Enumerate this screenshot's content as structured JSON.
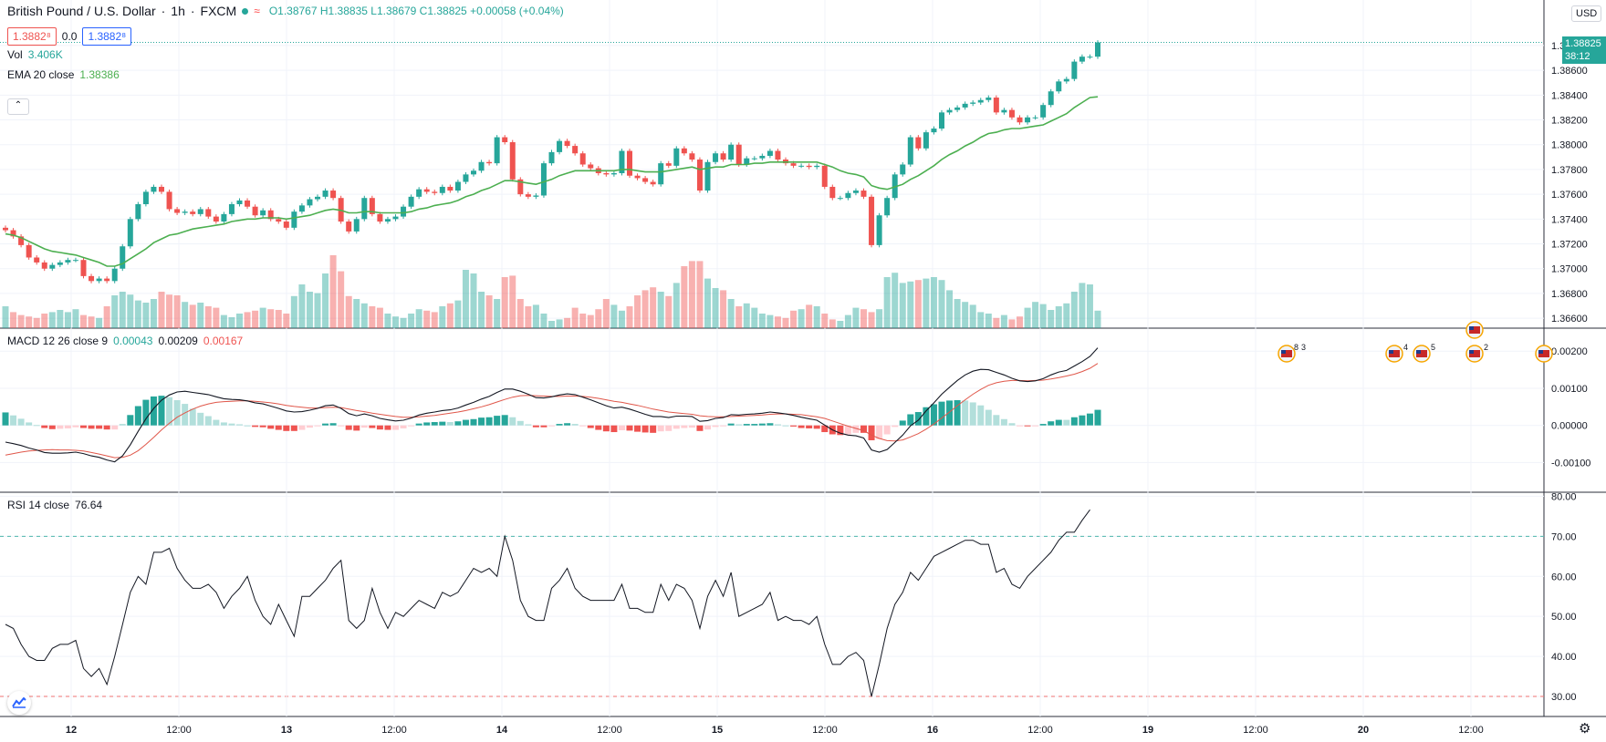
{
  "header": {
    "symbol": "British Pound / U.S. Dollar",
    "interval": "1h",
    "exchange": "FXCM",
    "open": "O1.38767",
    "high": "H1.38835",
    "low": "L1.38679",
    "close": "C1.38825",
    "change": "+0.00058 (+0.04%)"
  },
  "quote": {
    "sell": "1.3882⁸",
    "spread": "0.0",
    "buy": "1.3882⁸"
  },
  "indicators": {
    "vol_label": "Vol",
    "vol_value": "3.406K",
    "ema_label": "EMA 20 close",
    "ema_value": "1.38386",
    "macd_label": "MACD 12 26 close 9",
    "macd_hist": "0.00043",
    "macd_line": "0.00209",
    "macd_signal": "0.00167",
    "rsi_label": "RSI 14 close",
    "rsi_value": "76.64"
  },
  "currency": "USD",
  "last_price": {
    "price": "1.38825",
    "countdown": "38:12"
  },
  "colors": {
    "up": "#26a69a",
    "down": "#ef5350",
    "ema": "#4caf50",
    "macd": "#131722",
    "signal": "#e0574a",
    "rsi": "#131722",
    "grid": "#f0f3fa"
  },
  "chart_data": [
    {
      "type": "candlestick",
      "title": "British Pound / U.S. Dollar",
      "price_ticks": [
        "1.36600",
        "1.36800",
        "1.37000",
        "1.37200",
        "1.37400",
        "1.37600",
        "1.37800",
        "1.38000",
        "1.38200",
        "1.38400",
        "1.38600",
        "1.38800"
      ],
      "x_tick_labels": [
        "12",
        "12:00",
        "13",
        "12:00",
        "14",
        "12:00",
        "15",
        "12:00",
        "16",
        "12:00",
        "19",
        "12:00",
        "20",
        "12:00"
      ],
      "ylim": [
        1.3652,
        1.3902
      ],
      "close": [
        1.3731,
        1.3726,
        1.3719,
        1.3709,
        1.3705,
        1.37,
        1.3703,
        1.3705,
        1.3707,
        1.3707,
        1.3694,
        1.369,
        1.3692,
        1.369,
        1.37,
        1.3718,
        1.374,
        1.3752,
        1.3762,
        1.3766,
        1.3762,
        1.3748,
        1.3745,
        1.3746,
        1.3744,
        1.3748,
        1.3742,
        1.3738,
        1.3744,
        1.3752,
        1.3755,
        1.375,
        1.3743,
        1.3747,
        1.374,
        1.3738,
        1.3733,
        1.3746,
        1.3751,
        1.3756,
        1.3758,
        1.3763,
        1.3757,
        1.3738,
        1.373,
        1.374,
        1.3757,
        1.3744,
        1.3738,
        1.374,
        1.3742,
        1.375,
        1.3758,
        1.3764,
        1.3762,
        1.3761,
        1.3766,
        1.3763,
        1.377,
        1.3776,
        1.3779,
        1.3786,
        1.3785,
        1.3806,
        1.3802,
        1.3772,
        1.376,
        1.3758,
        1.3759,
        1.3785,
        1.3794,
        1.3803,
        1.3799,
        1.3793,
        1.3784,
        1.3781,
        1.3777,
        1.3776,
        1.3777,
        1.3795,
        1.3775,
        1.3773,
        1.377,
        1.3768,
        1.3785,
        1.3783,
        1.3797,
        1.3793,
        1.3788,
        1.3763,
        1.3786,
        1.3793,
        1.3788,
        1.38,
        1.3784,
        1.3789,
        1.3789,
        1.3791,
        1.3795,
        1.3788,
        1.3785,
        1.3783,
        1.3783,
        1.3782,
        1.3783,
        1.3766,
        1.3757,
        1.3757,
        1.3761,
        1.3763,
        1.3758,
        1.3719,
        1.3743,
        1.3757,
        1.3776,
        1.3784,
        1.3806,
        1.3797,
        1.381,
        1.3813,
        1.3826,
        1.3828,
        1.383,
        1.3833,
        1.3834,
        1.3836,
        1.3838,
        1.3826,
        1.3828,
        1.3822,
        1.3818,
        1.3822,
        1.3822,
        1.3832,
        1.3843,
        1.3851,
        1.3853,
        1.3867,
        1.3871,
        1.3871,
        1.38825
      ],
      "ema20": [
        1.3728,
        1.3727,
        1.3725,
        1.3722,
        1.3719,
        1.3716,
        1.3714,
        1.3713,
        1.3712,
        1.3711,
        1.3709,
        1.3707,
        1.3705,
        1.3702,
        1.3702,
        1.3704,
        1.3708,
        1.3712,
        1.3716,
        1.3721,
        1.3724,
        1.3727,
        1.3728,
        1.373,
        1.3732,
        1.3733,
        1.3734,
        1.3735,
        1.3736,
        1.3738,
        1.3739,
        1.374,
        1.374,
        1.3741,
        1.3741,
        1.3741,
        1.374,
        1.3741,
        1.3742,
        1.3743,
        1.3745,
        1.3747,
        1.3748,
        1.3747,
        1.3745,
        1.3745,
        1.3746,
        1.3746,
        1.3745,
        1.3745,
        1.3745,
        1.3745,
        1.3746,
        1.3748,
        1.3749,
        1.3751,
        1.3752,
        1.3753,
        1.3755,
        1.3758,
        1.376,
        1.3763,
        1.3765,
        1.3768,
        1.3771,
        1.3771,
        1.377,
        1.3769,
        1.3768,
        1.377,
        1.3772,
        1.3775,
        1.3777,
        1.3779,
        1.3779,
        1.3779,
        1.3779,
        1.3779,
        1.3779,
        1.378,
        1.378,
        1.3779,
        1.3778,
        1.3778,
        1.3778,
        1.3779,
        1.378,
        1.3781,
        1.3782,
        1.378,
        1.3781,
        1.3782,
        1.3782,
        1.3784,
        1.3784,
        1.3784,
        1.3785,
        1.3785,
        1.3786,
        1.3786,
        1.3786,
        1.3786,
        1.3786,
        1.3786,
        1.3786,
        1.3784,
        1.3782,
        1.3779,
        1.3777,
        1.3776,
        1.3774,
        1.3767,
        1.3765,
        1.3764,
        1.3766,
        1.3768,
        1.3772,
        1.3775,
        1.3779,
        1.3783,
        1.3788,
        1.3792,
        1.3795,
        1.3799,
        1.3802,
        1.3806,
        1.3809,
        1.381,
        1.3812,
        1.3813,
        1.3813,
        1.3814,
        1.3815,
        1.3816,
        1.3819,
        1.3822,
        1.3825,
        1.383,
        1.3834,
        1.3838,
        1.38386
      ],
      "volume": [
        0.3,
        0.22,
        0.18,
        0.16,
        0.14,
        0.2,
        0.22,
        0.25,
        0.22,
        0.26,
        0.18,
        0.16,
        0.14,
        0.3,
        0.45,
        0.5,
        0.46,
        0.38,
        0.35,
        0.4,
        0.5,
        0.46,
        0.45,
        0.36,
        0.32,
        0.35,
        0.3,
        0.28,
        0.18,
        0.15,
        0.2,
        0.22,
        0.24,
        0.28,
        0.26,
        0.25,
        0.2,
        0.44,
        0.6,
        0.5,
        0.48,
        0.75,
        1.0,
        0.78,
        0.44,
        0.4,
        0.34,
        0.3,
        0.28,
        0.2,
        0.16,
        0.14,
        0.2,
        0.26,
        0.24,
        0.22,
        0.3,
        0.34,
        0.38,
        0.8,
        0.75,
        0.5,
        0.45,
        0.4,
        0.7,
        0.72,
        0.4,
        0.3,
        0.32,
        0.2,
        0.1,
        0.12,
        0.14,
        0.28,
        0.2,
        0.18,
        0.26,
        0.4,
        0.32,
        0.24,
        0.3,
        0.45,
        0.52,
        0.56,
        0.5,
        0.44,
        0.62,
        0.85,
        0.92,
        0.92,
        0.68,
        0.55,
        0.52,
        0.4,
        0.3,
        0.34,
        0.28,
        0.2,
        0.18,
        0.16,
        0.14,
        0.24,
        0.26,
        0.32,
        0.3,
        0.2,
        0.12,
        0.1,
        0.18,
        0.28,
        0.26,
        0.22,
        0.26,
        0.7,
        0.76,
        0.62,
        0.64,
        0.66,
        0.68,
        0.7,
        0.66,
        0.52,
        0.4,
        0.36,
        0.32,
        0.22,
        0.2,
        0.14,
        0.18,
        0.12,
        0.16,
        0.28,
        0.36,
        0.33,
        0.25,
        0.3,
        0.34,
        0.5,
        0.62,
        0.6,
        0.24
      ],
      "markers": [
        "8",
        "3",
        "4",
        "5",
        "2"
      ]
    },
    {
      "type": "line",
      "title": "MACD 12 26 close 9",
      "y_tick_labels": [
        "0.00200",
        "0.00100",
        "0.00000",
        "-0.00100"
      ],
      "ylim": [
        -0.0018,
        0.00262
      ],
      "macd": [
        -0.00045,
        -0.00049,
        -0.00054,
        -0.00061,
        -0.00066,
        -0.00073,
        -0.00075,
        -0.00075,
        -0.00074,
        -0.00072,
        -0.00076,
        -0.00082,
        -0.00086,
        -0.00093,
        -0.00098,
        -0.00082,
        -0.00052,
        -0.00016,
        0.00018,
        0.00046,
        0.00068,
        0.00082,
        0.0009,
        0.00092,
        0.00089,
        0.00086,
        0.00083,
        0.00077,
        0.00072,
        0.0007,
        0.00069,
        0.00066,
        0.00061,
        0.00058,
        0.00052,
        0.00046,
        0.00039,
        0.00036,
        0.00037,
        0.00041,
        0.00046,
        0.00053,
        0.00055,
        0.00046,
        0.00032,
        0.00026,
        0.00031,
        0.00026,
        0.00019,
        0.00015,
        0.00012,
        0.00014,
        0.0002,
        0.00028,
        0.00033,
        0.00036,
        0.0004,
        0.00042,
        0.00047,
        0.00055,
        0.00062,
        0.00071,
        0.00078,
        0.00089,
        0.00098,
        0.00098,
        0.00092,
        0.00084,
        0.00075,
        0.00074,
        0.00077,
        0.00082,
        0.00085,
        0.00083,
        0.00076,
        0.00069,
        0.00061,
        0.00053,
        0.00047,
        0.00049,
        0.00044,
        0.00037,
        0.0003,
        0.00024,
        0.00024,
        0.00021,
        0.00025,
        0.00025,
        0.00024,
        0.00011,
        0.00013,
        0.00019,
        0.00021,
        0.00029,
        0.00028,
        0.0003,
        0.00031,
        0.00033,
        0.00036,
        0.00034,
        0.00031,
        0.00027,
        0.00022,
        0.00018,
        0.00014,
        1e-05,
        -0.00012,
        -0.00021,
        -0.00026,
        -0.00028,
        -0.00034,
        -0.00066,
        -0.00072,
        -0.00065,
        -0.00046,
        -0.00026,
        -1e-05,
        0.00014,
        0.00039,
        0.00061,
        0.00084,
        0.00103,
        0.00121,
        0.00136,
        0.00146,
        0.00151,
        0.0015,
        0.00143,
        0.00136,
        0.00127,
        0.0012,
        0.00118,
        0.0012,
        0.00126,
        0.00136,
        0.00144,
        0.00148,
        0.0016,
        0.00172,
        0.00186,
        0.00209
      ],
      "signal": [
        -0.0008,
        -0.00076,
        -0.00072,
        -0.00069,
        -0.00067,
        -0.00066,
        -0.00065,
        -0.00066,
        -0.00066,
        -0.00067,
        -0.00069,
        -0.00073,
        -0.00077,
        -0.00082,
        -0.00087,
        -0.00086,
        -0.0008,
        -0.00068,
        -0.00051,
        -0.00032,
        -0.00012,
        6e-05,
        0.00022,
        0.00034,
        0.00044,
        0.00052,
        0.00058,
        0.00062,
        0.00064,
        0.00065,
        0.00066,
        0.00066,
        0.00065,
        0.00063,
        0.00061,
        0.00058,
        0.00054,
        0.00051,
        0.00049,
        0.00047,
        0.00047,
        0.00048,
        0.00049,
        0.00048,
        0.00044,
        0.0004,
        0.00037,
        0.00033,
        0.0003,
        0.00027,
        0.00024,
        0.00022,
        0.00022,
        0.00023,
        0.00025,
        0.00027,
        0.0003,
        0.00033,
        0.00036,
        0.0004,
        0.00045,
        0.0005,
        0.00056,
        0.00063,
        0.0007,
        0.00076,
        0.0008,
        0.00081,
        0.0008,
        0.00079,
        0.00078,
        0.00078,
        0.00079,
        0.00079,
        0.00078,
        0.00076,
        0.00073,
        0.00069,
        0.00065,
        0.00062,
        0.00058,
        0.00054,
        0.00049,
        0.00044,
        0.0004,
        0.00036,
        0.00034,
        0.00032,
        0.0003,
        0.00026,
        0.00024,
        0.00023,
        0.00023,
        0.00024,
        0.00025,
        0.00026,
        0.00027,
        0.00028,
        0.0003,
        0.00031,
        0.00031,
        0.0003,
        0.00029,
        0.00026,
        0.00023,
        0.00019,
        0.00012,
        5e-05,
        -2e-05,
        -8e-05,
        -0.00014,
        -0.00026,
        -0.00035,
        -0.00041,
        -0.00042,
        -0.00039,
        -0.00031,
        -0.00022,
        -0.0001,
        4e-05,
        0.0002,
        0.00036,
        0.00053,
        0.00069,
        0.00084,
        0.00097,
        0.00108,
        0.00115,
        0.00119,
        0.00121,
        0.00121,
        0.0012,
        0.00121,
        0.00122,
        0.00125,
        0.00129,
        0.00133,
        0.00138,
        0.00145,
        0.00154,
        0.00167
      ],
      "hist_latest": 0.00043
    },
    {
      "type": "line",
      "title": "RSI 14 close",
      "y_tick_labels": [
        "80.00",
        "70.00",
        "60.00",
        "50.00",
        "40.00",
        "30.00"
      ],
      "ylim": [
        25,
        81
      ],
      "bands": [
        70,
        30
      ],
      "values": [
        48,
        47,
        43,
        40,
        39,
        39,
        42,
        43,
        43,
        44,
        37,
        35,
        37,
        33,
        40,
        48,
        56,
        60,
        58,
        66,
        66,
        67,
        62,
        59,
        57,
        57,
        58,
        56,
        52,
        55,
        57,
        60,
        54,
        50,
        48,
        53,
        49,
        45,
        55,
        55,
        57,
        59,
        62,
        64,
        49,
        47,
        49,
        57,
        51,
        47,
        51,
        50,
        52,
        54,
        53,
        52,
        56,
        55,
        56,
        59,
        62,
        61,
        62,
        60,
        70,
        64,
        54,
        50,
        49,
        49,
        57,
        59,
        62,
        57,
        55,
        54,
        54,
        54,
        54,
        58,
        52,
        52,
        51,
        51,
        58,
        54,
        58,
        57,
        54,
        47,
        55,
        59,
        55,
        61,
        50,
        51,
        52,
        53,
        56,
        49,
        50,
        49,
        49,
        48,
        50,
        43,
        38,
        38,
        40,
        41,
        39,
        30,
        38,
        47,
        53,
        56,
        61,
        59,
        62,
        65,
        66,
        67,
        68,
        69,
        69,
        68,
        68,
        61,
        62,
        58,
        57,
        60,
        62,
        64,
        66,
        69,
        71,
        71,
        74,
        76.64
      ],
      "latest": 76.64
    }
  ]
}
